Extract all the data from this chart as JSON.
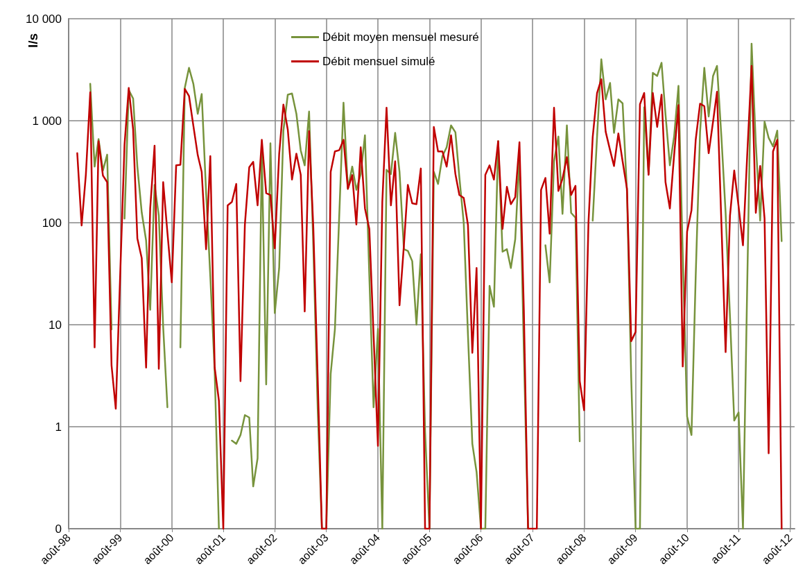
{
  "chart_data": {
    "type": "line",
    "ylabel": "l/s",
    "log": "y",
    "grid": true,
    "legend": "top",
    "xlim": [
      "1998-08",
      "2012-09"
    ],
    "ylim": [
      0.1,
      10000
    ],
    "xticks": [
      {
        "value": "1998-08",
        "label": "août-98"
      },
      {
        "value": "1999-08",
        "label": "août-99"
      },
      {
        "value": "2000-08",
        "label": "août-00"
      },
      {
        "value": "2001-08",
        "label": "août-01"
      },
      {
        "value": "2002-08",
        "label": "août-02"
      },
      {
        "value": "2003-08",
        "label": "août-03"
      },
      {
        "value": "2004-08",
        "label": "août-04"
      },
      {
        "value": "2005-08",
        "label": "août-05"
      },
      {
        "value": "2006-08",
        "label": "août-06"
      },
      {
        "value": "2007-08",
        "label": "août-07"
      },
      {
        "value": "2008-08",
        "label": "août-08"
      },
      {
        "value": "2009-08",
        "label": "août-09"
      },
      {
        "value": "2010-08",
        "label": "août-10"
      },
      {
        "value": "2011-08",
        "label": "août-11"
      },
      {
        "value": "2012-08",
        "label": "août-12"
      }
    ],
    "yticks": [
      {
        "value": 0.1,
        "label": "0"
      },
      1,
      10,
      100,
      {
        "value": 1000,
        "label": "1 000"
      },
      {
        "value": 10000,
        "label": "10 000"
      }
    ],
    "x": [
      "1998-10",
      "1998-11",
      "1998-12",
      "1999-01",
      "1999-02",
      "1999-03",
      "1999-04",
      "1999-05",
      "1999-06",
      "1999-07",
      "1999-08",
      "1999-09",
      "1999-10",
      "1999-11",
      "1999-12",
      "2000-01",
      "2000-02",
      "2000-03",
      "2000-04",
      "2000-05",
      "2000-06",
      "2000-07",
      "2000-08",
      "2000-09",
      "2000-10",
      "2000-11",
      "2000-12",
      "2001-01",
      "2001-02",
      "2001-03",
      "2001-04",
      "2001-05",
      "2001-06",
      "2001-07",
      "2001-08",
      "2001-09",
      "2001-10",
      "2001-11",
      "2001-12",
      "2002-01",
      "2002-02",
      "2002-03",
      "2002-04",
      "2002-05",
      "2002-06",
      "2002-07",
      "2002-08",
      "2002-09",
      "2002-10",
      "2002-11",
      "2002-12",
      "2003-01",
      "2003-02",
      "2003-03",
      "2003-04",
      "2003-05",
      "2003-06",
      "2003-07",
      "2003-08",
      "2003-09",
      "2003-10",
      "2003-11",
      "2003-12",
      "2004-01",
      "2004-02",
      "2004-03",
      "2004-04",
      "2004-05",
      "2004-06",
      "2004-07",
      "2004-08",
      "2004-09",
      "2004-10",
      "2004-11",
      "2004-12",
      "2005-01",
      "2005-02",
      "2005-03",
      "2005-04",
      "2005-05",
      "2005-06",
      "2005-07",
      "2005-08",
      "2005-09",
      "2005-10",
      "2005-11",
      "2005-12",
      "2006-01",
      "2006-02",
      "2006-03",
      "2006-04",
      "2006-05",
      "2006-06",
      "2006-07",
      "2006-08",
      "2006-09",
      "2006-10",
      "2006-11",
      "2006-12",
      "2007-01",
      "2007-02",
      "2007-03",
      "2007-04",
      "2007-05",
      "2007-06",
      "2007-07",
      "2007-08",
      "2007-09",
      "2007-10",
      "2007-11",
      "2007-12",
      "2008-01",
      "2008-02",
      "2008-03",
      "2008-04",
      "2008-05",
      "2008-06",
      "2008-07",
      "2008-08",
      "2008-09",
      "2008-10",
      "2008-11",
      "2008-12",
      "2009-01",
      "2009-02",
      "2009-03",
      "2009-04",
      "2009-05",
      "2009-06",
      "2009-07",
      "2009-08",
      "2009-09",
      "2009-10",
      "2009-11",
      "2009-12",
      "2010-01",
      "2010-02",
      "2010-03",
      "2010-04",
      "2010-05",
      "2010-06",
      "2010-07",
      "2010-08",
      "2010-09",
      "2010-10",
      "2010-11",
      "2010-12",
      "2011-01",
      "2011-02",
      "2011-03",
      "2011-04",
      "2011-05",
      "2011-06",
      "2011-07",
      "2011-08",
      "2011-09",
      "2011-10",
      "2011-11",
      "2011-12",
      "2012-01",
      "2012-02",
      "2012-03",
      "2012-04",
      "2012-05",
      "2012-06"
    ],
    "series": [
      {
        "name": "Débit moyen mensuel mesuré",
        "color": "#77933c",
        "values": [
          null,
          null,
          null,
          2300,
          355,
          660,
          325,
          465,
          9,
          null,
          null,
          110,
          2000,
          1650,
          355,
          126,
          67,
          14,
          235,
          117,
          9.5,
          1.55,
          null,
          null,
          6,
          2100,
          3300,
          2300,
          1170,
          1830,
          200,
          30,
          3.5,
          0.1,
          null,
          null,
          0.73,
          0.68,
          0.83,
          1.3,
          1.23,
          0.26,
          0.49,
          500,
          2.6,
          600,
          13,
          36,
          800,
          1800,
          1850,
          1170,
          510,
          365,
          1230,
          60,
          1.5,
          0.1,
          0.1,
          3.3,
          9,
          120,
          1500,
          215,
          355,
          210,
          300,
          720,
          30,
          1.55,
          9.1,
          0.1,
          330,
          300,
          760,
          315,
          55,
          53,
          42,
          10,
          49,
          0.9,
          0.1,
          315,
          240,
          450,
          550,
          900,
          770,
          280,
          100,
          8,
          0.68,
          0.36,
          0.1,
          0.1,
          24,
          15,
          630,
          52,
          55,
          36,
          69,
          450,
          5.6,
          0.1,
          null,
          null,
          null,
          60,
          26,
          400,
          700,
          122,
          900,
          125,
          112,
          0.72,
          null,
          null,
          105,
          700,
          4000,
          1620,
          2350,
          760,
          1620,
          1480,
          200,
          3,
          0.1,
          0.1,
          1350,
          300,
          2950,
          2750,
          3700,
          1150,
          365,
          700,
          2200,
          50,
          1.26,
          0.83,
          30,
          780,
          3300,
          1100,
          2750,
          3450,
          700,
          125,
          12,
          1.15,
          1.38,
          0.1,
          24,
          5700,
          600,
          105,
          980,
          680,
          560,
          800,
          66
        ]
      },
      {
        "name": "Débit mensuel simulé",
        "color": "#c00000",
        "values": [
          480,
          94,
          295,
          1900,
          6,
          630,
          290,
          250,
          4,
          1.5,
          30,
          580,
          2100,
          820,
          70,
          45,
          3.8,
          138,
          570,
          3.7,
          250,
          80,
          26,
          365,
          370,
          2050,
          1750,
          890,
          460,
          315,
          55,
          450,
          3.8,
          1.8,
          0.1,
          148,
          160,
          240,
          2.8,
          96,
          350,
          395,
          148,
          650,
          195,
          187,
          56,
          470,
          1440,
          820,
          265,
          475,
          295,
          13.5,
          790,
          90,
          3,
          0.1,
          0.1,
          315,
          500,
          515,
          650,
          215,
          293,
          96,
          550,
          138,
          87,
          8,
          0.65,
          160,
          1340,
          148,
          400,
          15.5,
          60,
          235,
          155,
          152,
          340,
          0.1,
          0.1,
          870,
          500,
          500,
          355,
          720,
          300,
          187,
          175,
          95,
          5.3,
          36,
          0.1,
          295,
          365,
          265,
          630,
          87,
          225,
          152,
          178,
          615,
          14,
          0.1,
          0.1,
          0.1,
          210,
          275,
          78,
          1340,
          205,
          270,
          440,
          187,
          230,
          2.8,
          1.45,
          100,
          690,
          1870,
          2550,
          780,
          515,
          360,
          750,
          400,
          215,
          6.9,
          8.5,
          1450,
          1870,
          295,
          1870,
          870,
          1800,
          250,
          138,
          460,
          1420,
          3.9,
          82,
          132,
          650,
          1470,
          1390,
          480,
          980,
          1920,
          100,
          5.4,
          117,
          325,
          145,
          60,
          460,
          3450,
          125,
          360,
          110,
          0.55,
          500,
          650,
          0.1
        ]
      }
    ]
  }
}
